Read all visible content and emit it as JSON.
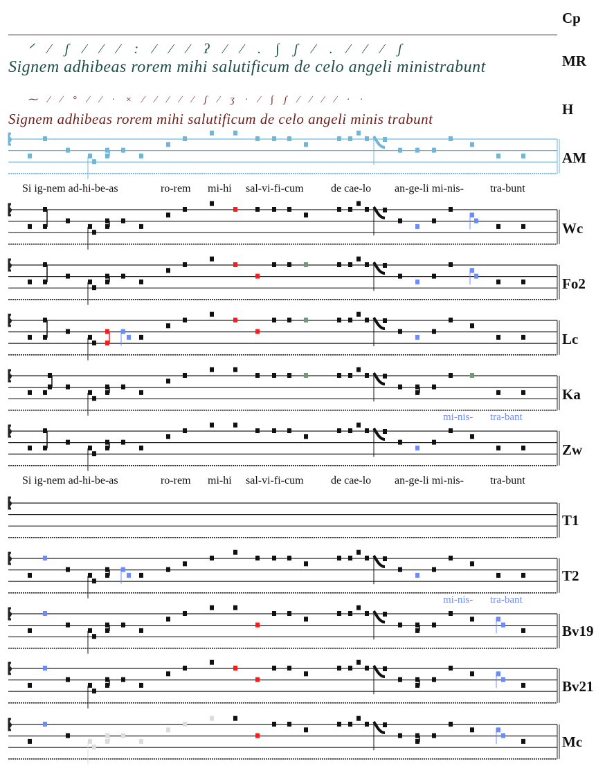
{
  "header": {
    "label": "Cp"
  },
  "manuscripts": [
    {
      "label": "MR",
      "text": "Signem adhibeas rorem mihi salutificum de celo angeli ministrabunt",
      "neumes": "ᐟ ∕ ʃ ∕ ∕ ∕ : ∕ ∕ ∕ ʔ ∕ ∕ . ∫ ʃ ∕ . ∕ ∕ ∕ ʃ",
      "color": "#1d4f4a"
    },
    {
      "label": "H",
      "text": "Signem adhibeas rorem mihi salutificum de celo angeli minis trabunt",
      "neumes": "⁓ ∕ ∕ ° ∕ ∕ · × ∕ ∕ ∕ ∕ ∕ ʃ ∕ ʒ · ∕ ∫ ʃ ∕ ∕ ∕ ∕ · ·",
      "color": "#6b1f1a"
    }
  ],
  "lyrics": [
    {
      "words": [
        "Si ig-nem ad-hi-be-as",
        "ro-rem",
        "mi-hi",
        "sal-vi-fi-cum",
        "de cae-lo",
        "an-ge-li mi-nis-",
        "tra-bunt"
      ]
    },
    {
      "words": [
        "Si ig-nem ad-hi-be-as",
        "ro-rem",
        "mi-hi",
        "sal-vi-fi-cum",
        "de cae-lo",
        "an-ge-li mi-nis-",
        "tra-bunt"
      ]
    }
  ],
  "variant_lyrics": {
    "a": "mi-nis-",
    "b": "tra-bant"
  },
  "colors": {
    "black": "#111111",
    "red": "#ff1a1a",
    "blue": "#6b8cff",
    "green": "#6e9a7a",
    "grey": "#dcdcdc",
    "am_blue": "#6fb6d8"
  },
  "staves": [
    {
      "label": "AM",
      "color": "am_blue",
      "notes": [
        "0:3",
        "1:0",
        "2:2",
        "3:3",
        "4:4",
        "5:2",
        "5:3",
        "6:2",
        "7:3",
        "8:1",
        "9:0",
        "10:-1",
        "11:-1",
        "12:0",
        "13:0",
        "14:0",
        "15:1",
        "16:0",
        "17:0",
        "18:-1",
        "19:0",
        "20:P",
        "21:2",
        "22:2",
        "23:2",
        "24:0",
        "25:1",
        "27:3",
        "28:3"
      ]
    },
    {
      "label": "Wc",
      "notes": [
        "0:3",
        "1:0",
        "1:3",
        "2:2",
        "3:3",
        "4:4",
        "5:2",
        "5:3",
        "6:2",
        "7:3",
        "8:1",
        "9:0",
        "10:-1",
        "11:0:red",
        "12:0",
        "13:0",
        "14:0",
        "15:1",
        "16:0",
        "17:0",
        "18:-1",
        "19:0",
        "20:P",
        "21:2",
        "22:3:blue",
        "23:2",
        "24:0",
        "25:1:blue",
        "26:2:blue",
        "27:3",
        "28:3"
      ]
    },
    {
      "label": "Fo2",
      "notes": [
        "0:3",
        "1:0",
        "1:3",
        "2:2",
        "3:3",
        "4:4",
        "5:2",
        "5:3",
        "6:2",
        "7:3",
        "8:1",
        "9:0",
        "10:-1",
        "11:0:red",
        "12:2:red",
        "13:0",
        "14:0",
        "15:0:green",
        "16:0",
        "17:0",
        "18:-1",
        "19:0",
        "20:P",
        "21:2",
        "22:3:blue",
        "23:2",
        "24:0",
        "25:1:blue",
        "26:2:blue",
        "27:3",
        "28:3"
      ]
    },
    {
      "label": "Lc",
      "notes": [
        "0:3",
        "1:0",
        "1:3",
        "2:2",
        "3:3",
        "4:4",
        "5:2:red",
        "5:4:red",
        "6:2:blue",
        "6b:3:blue",
        "7:3",
        "8:1",
        "9:0",
        "10:-1",
        "11:0:red",
        "12:2:red",
        "13:0",
        "14:0",
        "15:0:green",
        "16:0",
        "17:0",
        "18:-1",
        "19:0",
        "20:P",
        "21:2",
        "22:3:blue",
        "23:2",
        "24:0",
        "25:1",
        "27:3",
        "28:3"
      ]
    },
    {
      "label": "Ka",
      "notes": [
        "0:3",
        "1:3",
        "1b:0",
        "1b:2",
        "2:2",
        "3:3",
        "4:4",
        "5:2",
        "5:3",
        "6:2",
        "7:3",
        "8:1",
        "9:0",
        "10:-1",
        "11:-1",
        "12:0",
        "13:0",
        "14:0",
        "15:0:green",
        "16:0",
        "17:0",
        "18:-1",
        "19:0",
        "20:P",
        "21:2",
        "22:2",
        "22:3",
        "23:2",
        "24:0",
        "25:0:green",
        "27:3",
        "28:3"
      ]
    },
    {
      "label": "Zw",
      "variant": true,
      "notes": [
        "0:3",
        "1:0",
        "1:3",
        "2:2",
        "3:3",
        "4:4",
        "5:2",
        "5:3",
        "6:2",
        "7:3",
        "8:1",
        "9:0",
        "10:-1",
        "11:-1",
        "12:0",
        "13:0",
        "14:0",
        "15:1",
        "16:0",
        "17:0",
        "18:-1",
        "19:0",
        "20:P",
        "21:2",
        "22:3:blue",
        "23:2",
        "24:0",
        "25:1",
        "27:3",
        "28:3"
      ]
    },
    {
      "label": "T1",
      "notes": []
    },
    {
      "label": "T2",
      "notes": [
        "0:3",
        "1:0:blue",
        "2:2",
        "3:3",
        "4:4",
        "5:2",
        "5:3",
        "6:2:blue",
        "6b:3:blue",
        "7:3",
        "8:2",
        "9:1",
        "10:0",
        "11:-1",
        "12:0",
        "13:0",
        "14:0",
        "15:1",
        "16:0",
        "17:0",
        "18:-1",
        "19:0",
        "20:P",
        "21:2",
        "22:3:blue",
        "23:2",
        "24:0",
        "25:1",
        "27:3",
        "28:3"
      ]
    },
    {
      "label": "Bv19",
      "variant": true,
      "notes": [
        "0:3",
        "1:0:blue",
        "2:2",
        "3:3",
        "4:4",
        "5:2",
        "5:3",
        "6:2",
        "7:3",
        "8:1",
        "9:0",
        "10:-1",
        "11:-1",
        "12:2:red",
        "13:0",
        "14:0",
        "15:1",
        "16:0",
        "17:0",
        "18:-1",
        "19:0",
        "20:P",
        "21:2",
        "22:2",
        "22:3",
        "23:2",
        "24:0",
        "25:1",
        "27:1:blue",
        "27b:2:blue",
        "28:3"
      ]
    },
    {
      "label": "Bv21",
      "notes": [
        "0:3",
        "1:0:blue",
        "2:2",
        "3:3",
        "4:4",
        "5:2",
        "5:3",
        "6:2",
        "7:3",
        "8:1",
        "9:0",
        "10:-1",
        "11:0:red",
        "12:2:red",
        "13:0",
        "14:0",
        "15:1",
        "16:0",
        "17:0",
        "18:-1",
        "19:0",
        "20:P",
        "21:2",
        "22:2",
        "22:3",
        "23:2",
        "24:0",
        "25:1",
        "27:1:blue",
        "27b:2:blue",
        "28:3"
      ]
    },
    {
      "label": "Mc",
      "notes": [
        "0:3",
        "1:0:blue",
        "2:2",
        "3:3:grey",
        "4:4:grey",
        "5:2:grey",
        "5:3:grey",
        "6:2:grey",
        "7:3:grey",
        "8:1:grey",
        "9:0:grey",
        "10:-1:grey",
        "11:-1",
        "12:2:red",
        "13:0",
        "14:0",
        "15:1",
        "16:0",
        "17:0",
        "18:-1",
        "19:0",
        "20:P",
        "21:2",
        "22:2",
        "22:3",
        "23:2",
        "24:0",
        "25:1",
        "27:1:blue",
        "27b:2:blue",
        "28:3"
      ]
    }
  ]
}
